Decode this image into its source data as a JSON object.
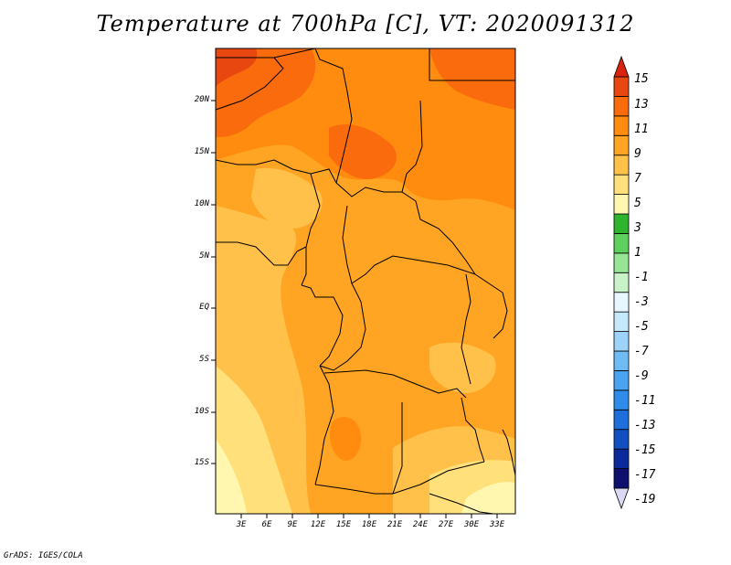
{
  "title": "Temperature at 700hPa [C], VT: 2020091312",
  "credit": "GrADS: IGES/COLA",
  "map": {
    "lat_labels": [
      "20N",
      "15N",
      "10N",
      "5N",
      "EQ",
      "5S",
      "10S",
      "15S"
    ],
    "lon_labels": [
      "3E",
      "6E",
      "9E",
      "12E",
      "15E",
      "18E",
      "21E",
      "24E",
      "27E",
      "30E",
      "33E"
    ]
  },
  "colorbar": {
    "labels": [
      "15",
      "13",
      "11",
      "9",
      "7",
      "5",
      "3",
      "1",
      "-1",
      "-3",
      "-5",
      "-7",
      "-9",
      "-11",
      "-13",
      "-15",
      "-17",
      "-19"
    ],
    "colors": [
      "#d9d9f3",
      "#0f0f6e",
      "#0a2a9c",
      "#1250bf",
      "#1e6fd9",
      "#2f8ce8",
      "#4aa3f0",
      "#6fbcf5",
      "#9dd3f9",
      "#c6e8fb",
      "#e8f6fd",
      "#c9f2c9",
      "#96e696",
      "#5ed05e",
      "#2fb42f",
      "#fff6b0",
      "#ffe07a",
      "#ffc14a",
      "#ffa523",
      "#ff8c0f",
      "#f96b0d",
      "#e8470f",
      "#d9220f"
    ]
  }
}
